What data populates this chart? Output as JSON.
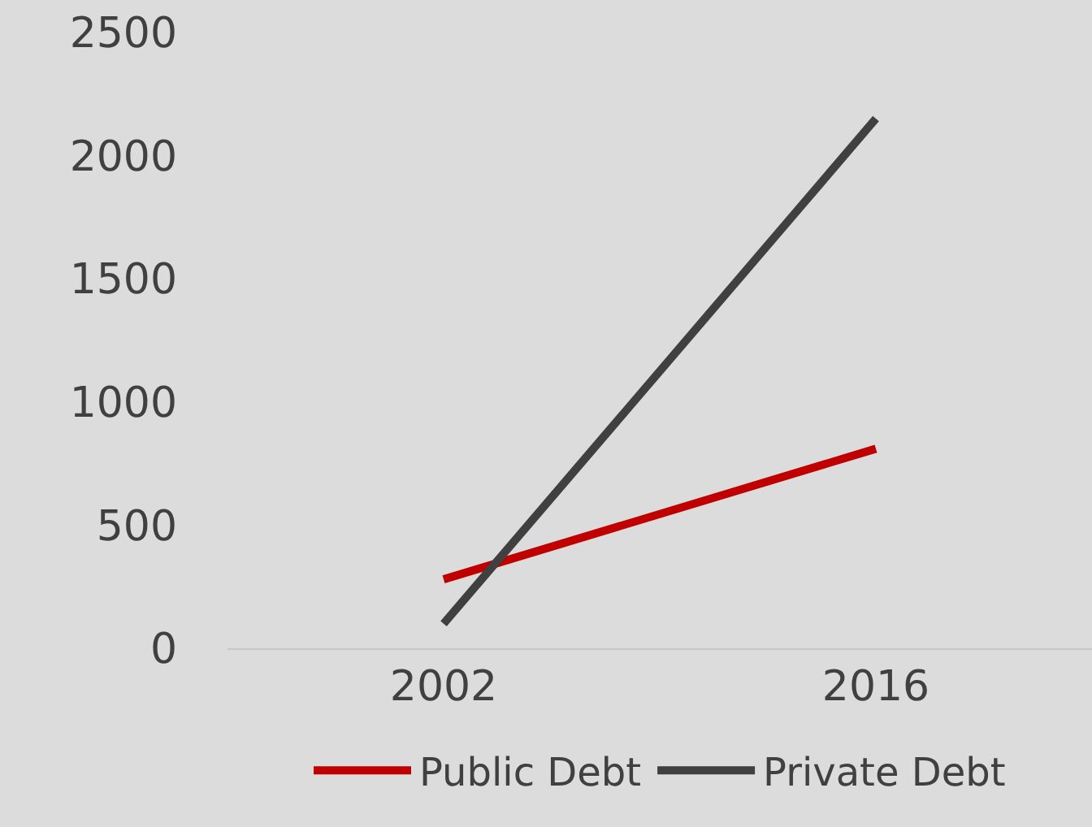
{
  "chart_data": {
    "type": "line",
    "categories": [
      "2002",
      "2016"
    ],
    "series": [
      {
        "name": "Public Debt",
        "color": "#c00000",
        "values": [
          280,
          810
        ]
      },
      {
        "name": "Private Debt",
        "color": "#404040",
        "values": [
          100,
          2150
        ]
      }
    ],
    "ylim": [
      0,
      2500
    ],
    "yticks": [
      0,
      500,
      1000,
      1500,
      2000,
      2500
    ],
    "grid": false,
    "legend": "bottom",
    "marker": "none",
    "line_style": "solid"
  }
}
